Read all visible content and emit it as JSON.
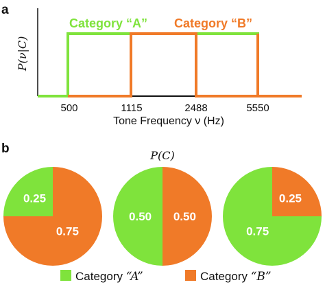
{
  "panels": {
    "a": "a",
    "b": "b"
  },
  "colors": {
    "category_a": "#7fe33c",
    "category_b": "#f07a28",
    "axis": "#111111"
  },
  "chart_data": [
    {
      "type": "line",
      "panel": "a",
      "ylabel": "P(ν|C)",
      "xlabel": "Tone Frequency ν (Hz)",
      "x_ticks": [
        "500",
        "1115",
        "2488",
        "5550"
      ],
      "y_range": [
        0,
        1
      ],
      "grid": false,
      "series": [
        {
          "name": "Category “A”",
          "color_key": "category_a",
          "high_intervals": [
            [
              "500",
              "1115"
            ],
            [
              "2488",
              "5550"
            ]
          ]
        },
        {
          "name": "Category “B”",
          "color_key": "category_b",
          "high_intervals": [
            [
              "1115",
              "2488"
            ],
            [
              "5550",
              "end"
            ]
          ]
        }
      ]
    },
    {
      "type": "pie",
      "panel": "b",
      "title": "P(C)",
      "pies": [
        {
          "labels": [
            "Category “A”",
            "Category “B”"
          ],
          "values": [
            0.25,
            0.75
          ],
          "value_labels": [
            "0.25",
            "0.75"
          ]
        },
        {
          "labels": [
            "Category “A”",
            "Category “B”"
          ],
          "values": [
            0.5,
            0.5
          ],
          "value_labels": [
            "0.50",
            "0.50"
          ]
        },
        {
          "labels": [
            "Category “A”",
            "Category “B”"
          ],
          "values": [
            0.75,
            0.25
          ],
          "value_labels": [
            "0.75",
            "0.25"
          ]
        }
      ],
      "legend": {
        "placement": "bottom",
        "entries": [
          {
            "label_prefix": "Category ",
            "label_italic": "“A”",
            "color_key": "category_a"
          },
          {
            "label_prefix": "Category ",
            "label_italic": "“B”",
            "color_key": "category_b"
          }
        ]
      }
    }
  ]
}
